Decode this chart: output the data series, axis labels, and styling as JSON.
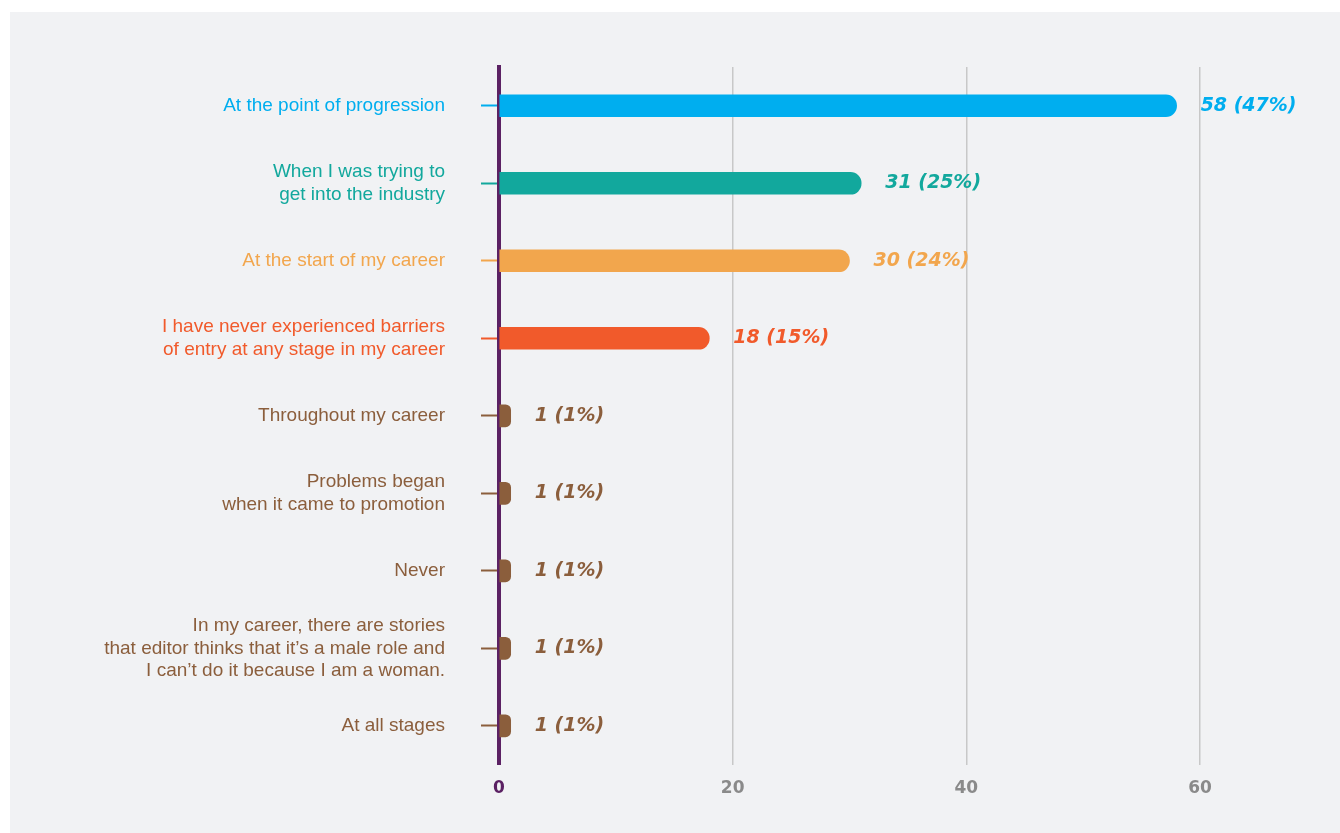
{
  "chart_data": {
    "type": "bar",
    "orientation": "horizontal",
    "categories": [
      "At the point of progression",
      "When I was trying to\nget into the industry",
      "At the start of my career",
      "I have never experienced barriers\nof entry at any stage in my career",
      "Throughout my career",
      "Problems began\nwhen it came to promotion",
      "Never",
      "In my career, there are stories\nthat editor thinks that it’s a male role and\nI can’t do it because I am a woman.",
      "At all stages"
    ],
    "values": [
      58,
      31,
      30,
      18,
      1,
      1,
      1,
      1,
      1
    ],
    "colors": [
      "#00aeef",
      "#12a89d",
      "#f2a64d",
      "#f15a2b",
      "#8b5e3c",
      "#8b5e3c",
      "#8b5e3c",
      "#8b5e3c",
      "#8b5e3c"
    ],
    "value_labels": [
      "58 (47%)",
      "31 (25%)",
      "30 (24%)",
      "18 (15%)",
      "1 (1%)",
      "1 (1%)",
      "1 (1%)",
      "1 (1%)",
      "1 (1%)"
    ],
    "xlim": [
      0,
      60
    ],
    "xticks": [
      0,
      20,
      40,
      60
    ],
    "grid": "x",
    "legend": false
  }
}
